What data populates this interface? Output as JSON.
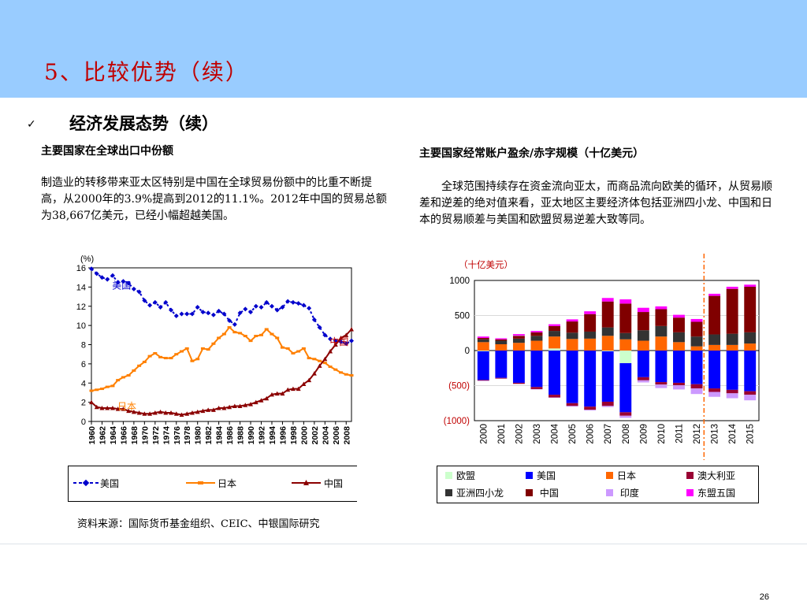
{
  "slide": {
    "title": "5、比较优势（续）",
    "heading": "经济发展态势（续）",
    "bullet_glyph": "✓",
    "page_number": "26"
  },
  "left": {
    "subtitle": "主要国家在全球出口中份额",
    "paragraph": "制造业的转移带来亚太区特别是中国在全球贸易份额中的比重不断提高，从2000年的3.9%提高到2012的11.1%。2012年中国的贸易总额为38,667亿美元，已经小幅超越美国。",
    "source": "资料来源：国际货币基金组织、CEIC、中银国际研究"
  },
  "right": {
    "subtitle": "主要国家经常账户盈余/赤字规模（十亿美元）",
    "paragraph": "全球范围持续存在资金流向亚太，而商品流向欧美的循环，从贸易顺差和逆差的绝对值来看，亚太地区主要经济体包括亚洲四小龙、中国和日本的贸易顺差与美国和欧盟贸易逆差大致等同。"
  },
  "chart_data": [
    {
      "type": "line",
      "ylabel": "(%)",
      "ylim": [
        0,
        16
      ],
      "yticks": [
        "0",
        "2",
        "4",
        "6",
        "8",
        "10",
        "12",
        "14",
        "16"
      ],
      "x": [
        1960,
        1961,
        1962,
        1963,
        1964,
        1965,
        1966,
        1967,
        1968,
        1969,
        1970,
        1971,
        1972,
        1973,
        1974,
        1975,
        1976,
        1977,
        1978,
        1979,
        1980,
        1981,
        1982,
        1983,
        1984,
        1985,
        1986,
        1987,
        1988,
        1989,
        1990,
        1991,
        1992,
        1993,
        1994,
        1995,
        1996,
        1997,
        1998,
        1999,
        2000,
        2001,
        2002,
        2003,
        2004,
        2005,
        2006,
        2007,
        2008,
        2009
      ],
      "xtick_labels": [
        "1960",
        "1962",
        "1964",
        "1966",
        "1968",
        "1970",
        "1972",
        "1974",
        "1976",
        "1978",
        "1980",
        "1982",
        "1984",
        "1986",
        "1988",
        "1990",
        "1992",
        "1994",
        "1996",
        "1998",
        "2000",
        "2002",
        "2004",
        "2006",
        "2008"
      ],
      "series": [
        {
          "name": "美国",
          "color": "#0000CC",
          "marker": "diamond",
          "dashed": true,
          "values": [
            15.9,
            15.4,
            15.0,
            14.8,
            15.2,
            14.5,
            14.6,
            14.4,
            13.8,
            13.5,
            12.6,
            12.1,
            12.4,
            11.9,
            12.4,
            11.6,
            11.0,
            11.2,
            11.2,
            11.2,
            11.9,
            11.4,
            11.3,
            11.1,
            11.5,
            11.2,
            10.5,
            10.1,
            11.3,
            11.7,
            11.4,
            12.0,
            11.9,
            12.4,
            12.0,
            11.6,
            11.9,
            12.5,
            12.4,
            12.3,
            12.1,
            11.8,
            10.6,
            9.8,
            9.0,
            8.6,
            8.4,
            8.3,
            8.1,
            8.4
          ]
        },
        {
          "name": "日本",
          "color": "#FF8000",
          "marker": "dash",
          "dashed": false,
          "values": [
            3.2,
            3.3,
            3.4,
            3.6,
            3.7,
            4.3,
            4.6,
            4.8,
            5.3,
            5.8,
            6.2,
            6.8,
            7.1,
            6.7,
            6.6,
            6.6,
            7.0,
            7.3,
            7.6,
            6.3,
            6.5,
            7.6,
            7.5,
            8.1,
            8.7,
            9.1,
            9.8,
            9.3,
            9.2,
            8.9,
            8.4,
            8.9,
            9.0,
            9.6,
            9.1,
            8.7,
            7.7,
            7.6,
            7.1,
            7.3,
            7.6,
            6.6,
            6.5,
            6.3,
            6.1,
            5.7,
            5.4,
            5.1,
            4.9,
            4.8
          ]
        },
        {
          "name": "中国",
          "color": "#8B0000",
          "marker": "triangle",
          "dashed": false,
          "values": [
            2.0,
            1.5,
            1.4,
            1.4,
            1.4,
            1.3,
            1.3,
            1.1,
            1.0,
            0.9,
            0.8,
            0.8,
            0.9,
            1.0,
            0.9,
            0.9,
            0.8,
            0.7,
            0.8,
            0.9,
            1.0,
            1.1,
            1.2,
            1.2,
            1.4,
            1.4,
            1.5,
            1.6,
            1.6,
            1.7,
            1.8,
            2.0,
            2.2,
            2.4,
            2.8,
            2.9,
            2.9,
            3.3,
            3.4,
            3.4,
            3.9,
            4.3,
            5.0,
            5.8,
            6.5,
            7.3,
            8.0,
            8.7,
            9.0,
            9.6
          ]
        }
      ],
      "annotations": [
        {
          "text": "美国",
          "series": "美国",
          "color": "#0000CC"
        },
        {
          "text": "日本",
          "series": "日本",
          "color": "#FF8000"
        },
        {
          "text": "中国",
          "series": "中国",
          "color": "#C00000"
        }
      ],
      "legend": {
        "placement": "bottom",
        "items": [
          "美国",
          "日本",
          "中国"
        ]
      }
    },
    {
      "type": "bar",
      "stacked": true,
      "unit_label": "（十亿美元）",
      "ylim": [
        -1000,
        1000
      ],
      "ytick_values": [
        -1000,
        -500,
        0,
        500,
        1000
      ],
      "ytick_labels": [
        "(1000)",
        "(500)",
        "0",
        "500",
        "1000"
      ],
      "categories": [
        "2000",
        "2001",
        "2002",
        "2003",
        "2004",
        "2005",
        "2006",
        "2007",
        "2008",
        "2009",
        "2010",
        "2011",
        "2012",
        "2013",
        "2014",
        "2015"
      ],
      "forecast_divider_after": "2012",
      "series": [
        {
          "name": "欧盟",
          "color": "#CCFFCC",
          "values": [
            -10,
            0,
            0,
            0,
            30,
            0,
            0,
            -10,
            -180,
            0,
            0,
            0,
            0,
            0,
            0,
            0
          ]
        },
        {
          "name": "美国",
          "color": "#0000FF",
          "values": [
            -410,
            -390,
            -460,
            -520,
            -630,
            -750,
            -800,
            -720,
            -700,
            -380,
            -450,
            -460,
            -480,
            -540,
            -560,
            -580
          ]
        },
        {
          "name": "日本",
          "color": "#FF6600",
          "values": [
            120,
            90,
            110,
            140,
            170,
            165,
            170,
            210,
            160,
            140,
            200,
            120,
            60,
            80,
            80,
            100
          ]
        },
        {
          "name": "澳大利亚",
          "color": "#990033",
          "values": [
            -10,
            -10,
            -15,
            -30,
            -40,
            -40,
            -45,
            -60,
            -50,
            -45,
            -35,
            -35,
            -60,
            -50,
            -50,
            -50
          ]
        },
        {
          "name": "亚洲四小龙",
          "color": "#333333",
          "values": [
            40,
            50,
            60,
            70,
            80,
            90,
            100,
            120,
            90,
            150,
            150,
            140,
            140,
            150,
            160,
            160
          ]
        },
        {
          "name": "中国",
          "color": "#800000",
          "values": [
            20,
            20,
            40,
            50,
            70,
            160,
            250,
            370,
            420,
            260,
            240,
            210,
            210,
            550,
            640,
            650
          ]
        },
        {
          "name": "印度",
          "color": "#CC99FF",
          "values": [
            -5,
            0,
            5,
            -5,
            -5,
            -10,
            -10,
            -15,
            -30,
            -30,
            -50,
            -60,
            -80,
            -70,
            -70,
            -80
          ]
        },
        {
          "name": "东盟五国",
          "color": "#FF00FF",
          "values": [
            20,
            15,
            20,
            20,
            25,
            30,
            40,
            50,
            60,
            60,
            40,
            40,
            40,
            30,
            30,
            30
          ]
        }
      ],
      "legend": {
        "placement": "bottom",
        "items": [
          "欧盟",
          "美国",
          "日本",
          "澳大利亚",
          "亚洲四小龙",
          "中国",
          "印度",
          "东盟五国"
        ],
        "label_prefixes": [
          "",
          "",
          "",
          "",
          "",
          " ",
          " ",
          ""
        ]
      }
    }
  ]
}
